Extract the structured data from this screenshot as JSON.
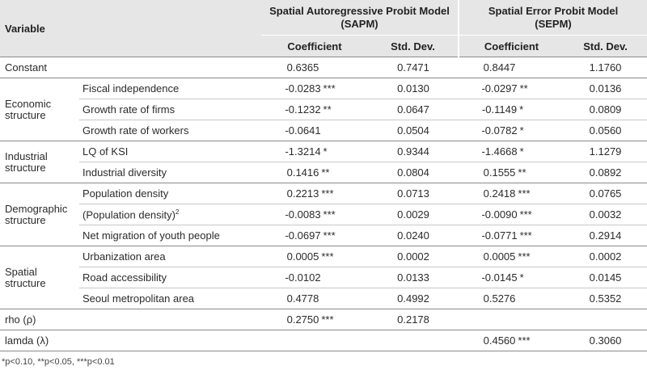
{
  "header": {
    "variable": "Variable",
    "sapm_line1": "Spatial Autoregressive Probit Model",
    "sapm_line2": "(SAPM)",
    "sepm_line1": "Spatial Error Probit Model",
    "sepm_line2": "(SEPM)",
    "coef": "Coefficient",
    "sd": "Std. Dev."
  },
  "rows": {
    "constant": {
      "label": "Constant",
      "sapm_c": "0.6365",
      "sapm_s": "",
      "sapm_sd": "0.7471",
      "sepm_c": "0.8447",
      "sepm_s": "",
      "sepm_sd": "1.1760"
    },
    "econ": {
      "category": "Economic structure",
      "r1": {
        "label": "Fiscal independence",
        "sapm_c": "-0.0283",
        "sapm_s": "***",
        "sapm_sd": "0.0130",
        "sepm_c": "-0.0297",
        "sepm_s": "**",
        "sepm_sd": "0.0136"
      },
      "r2": {
        "label": "Growth rate of firms",
        "sapm_c": "-0.1232",
        "sapm_s": "**",
        "sapm_sd": "0.0647",
        "sepm_c": "-0.1149",
        "sepm_s": "*",
        "sepm_sd": "0.0809"
      },
      "r3": {
        "label": "Growth rate of workers",
        "sapm_c": "-0.0641",
        "sapm_s": "",
        "sapm_sd": "0.0504",
        "sepm_c": "-0.0782",
        "sepm_s": "*",
        "sepm_sd": "0.0560"
      }
    },
    "ind": {
      "category": "Industrial structure",
      "r1": {
        "label": "LQ of KSI",
        "sapm_c": "-1.3214",
        "sapm_s": "*",
        "sapm_sd": "0.9344",
        "sepm_c": "-1.4668",
        "sepm_s": "*",
        "sepm_sd": "1.1279"
      },
      "r2": {
        "label": "Industrial diversity",
        "sapm_c": "0.1416",
        "sapm_s": "**",
        "sapm_sd": "0.0804",
        "sepm_c": "0.1555",
        "sepm_s": "**",
        "sepm_sd": "0.0892"
      }
    },
    "demo": {
      "category": "Demographic structure",
      "r1": {
        "label": "Population density",
        "sapm_c": "0.2213",
        "sapm_s": "***",
        "sapm_sd": "0.0713",
        "sepm_c": "0.2418",
        "sepm_s": "***",
        "sepm_sd": "0.0765"
      },
      "r2": {
        "label": "(Population density)",
        "label_sup": "2",
        "sapm_c": "-0.0083",
        "sapm_s": "***",
        "sapm_sd": "0.0029",
        "sepm_c": "-0.0090",
        "sepm_s": "***",
        "sepm_sd": "0.0032"
      },
      "r3": {
        "label": "Net migration of youth people",
        "sapm_c": "-0.0697",
        "sapm_s": "***",
        "sapm_sd": "0.0240",
        "sepm_c": "-0.0771",
        "sepm_s": "***",
        "sepm_sd": "0.2914"
      }
    },
    "spat": {
      "category": "Spatial structure",
      "r1": {
        "label": "Urbanization area",
        "sapm_c": "0.0005",
        "sapm_s": "***",
        "sapm_sd": "0.0002",
        "sepm_c": "0.0005",
        "sepm_s": "***",
        "sepm_sd": "0.0002"
      },
      "r2": {
        "label": "Road accessibility",
        "sapm_c": "-0.0102",
        "sapm_s": "",
        "sapm_sd": "0.0133",
        "sepm_c": "-0.0145",
        "sepm_s": "*",
        "sepm_sd": "0.0145"
      },
      "r3": {
        "label": "Seoul metropolitan area",
        "sapm_c": "0.4778",
        "sapm_s": "",
        "sapm_sd": "0.4992",
        "sepm_c": "0.5276",
        "sepm_s": "",
        "sepm_sd": "0.5352"
      }
    },
    "rho": {
      "label": "rho (ρ)",
      "sapm_c": "0.2750",
      "sapm_s": "***",
      "sapm_sd": "0.2178",
      "sepm_c": "",
      "sepm_s": "",
      "sepm_sd": ""
    },
    "lamda": {
      "label": "lamda (λ)",
      "sapm_c": "",
      "sapm_s": "",
      "sapm_sd": "",
      "sepm_c": "0.4560",
      "sepm_s": "***",
      "sepm_sd": "0.3060"
    }
  },
  "footnote": "*p<0.10, **p<0.05, ***p<0.01"
}
